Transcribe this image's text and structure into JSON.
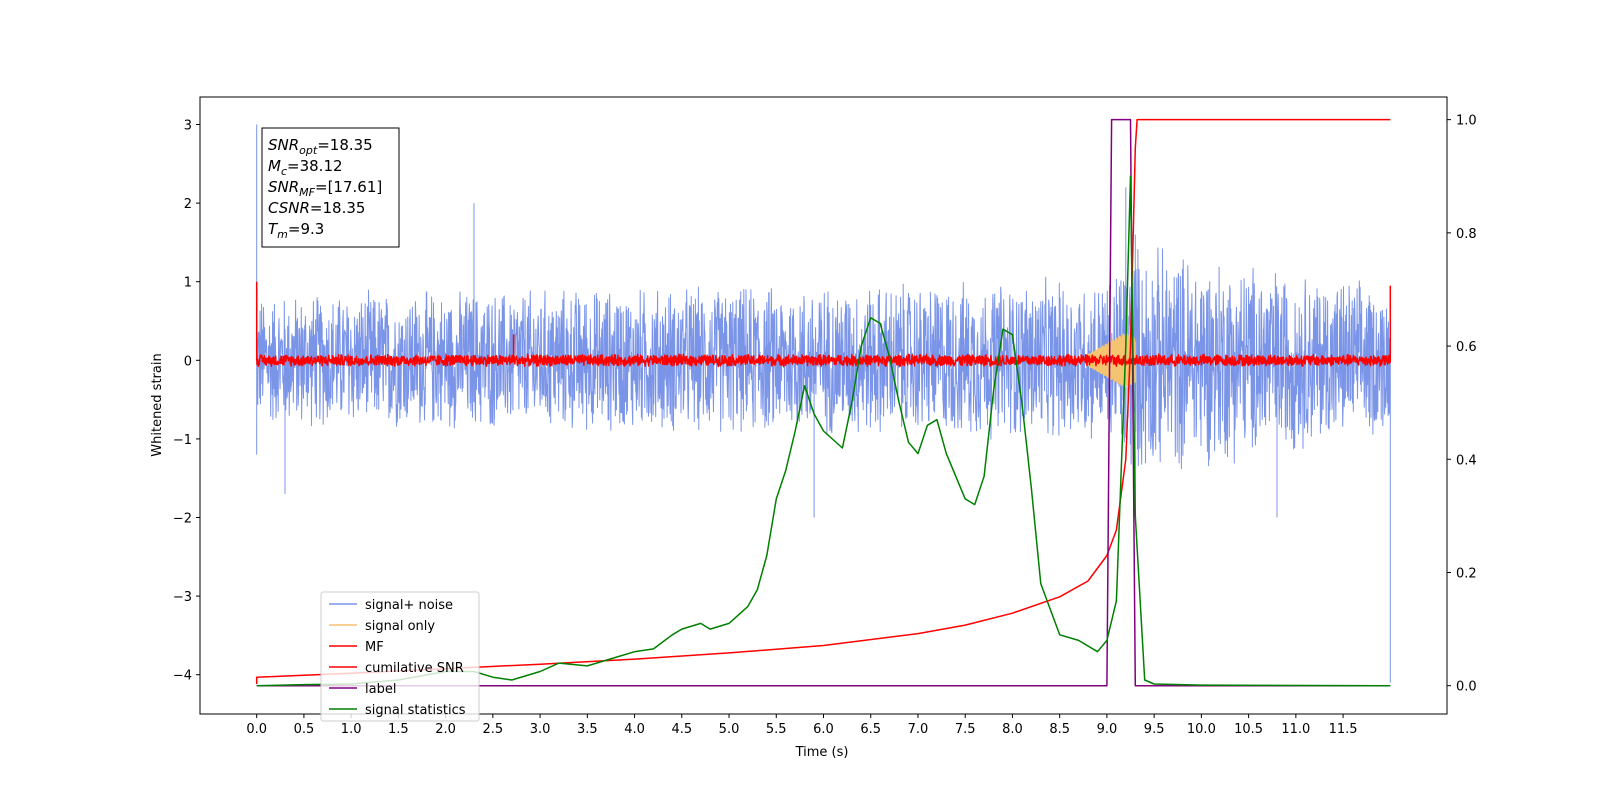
{
  "chart_data": {
    "type": "line",
    "xlabel": "Time (s)",
    "ylabel": "Whitened strain",
    "xlim": [
      -0.6,
      12.6
    ],
    "ylim": [
      -4.5,
      3.35
    ],
    "y2lim": [
      -0.05,
      1.04
    ],
    "xticks": [
      0.0,
      0.5,
      1.0,
      1.5,
      2.0,
      2.5,
      3.0,
      3.5,
      4.0,
      4.5,
      5.0,
      5.5,
      6.0,
      6.5,
      7.0,
      7.5,
      8.0,
      8.5,
      9.0,
      9.5,
      10.0,
      10.5,
      11.0,
      11.5
    ],
    "xtick_labels": [
      "0.0",
      "0.5",
      "1.0",
      "1.5",
      "2.0",
      "2.5",
      "3.0",
      "3.5",
      "4.0",
      "4.5",
      "5.0",
      "5.5",
      "6.0",
      "6.5",
      "7.0",
      "7.5",
      "8.0",
      "8.5",
      "9.0",
      "9.5",
      "10.0",
      "10.5",
      "11.0",
      "11.5"
    ],
    "yticks": [
      -4,
      -3,
      -2,
      -1,
      0,
      1,
      2,
      3
    ],
    "ytick_labels": [
      "−4",
      "−3",
      "−2",
      "−1",
      "0",
      "1",
      "2",
      "3"
    ],
    "y2ticks": [
      0.0,
      0.2,
      0.4,
      0.6,
      0.8,
      1.0
    ],
    "y2tick_labels": [
      "0.0",
      "0.2",
      "0.4",
      "0.6",
      "0.8",
      "1.0"
    ],
    "grid": false,
    "legend_position": "lower-left",
    "annotation": {
      "lines": [
        {
          "base": "SNR",
          "sub": "opt",
          "value": "=18.35"
        },
        {
          "base": "M",
          "sub": "c",
          "value": "=38.12"
        },
        {
          "base": "SNR",
          "sub": "MF",
          "value": "=[17.61]"
        },
        {
          "base": "CSNR",
          "sub": "",
          "value": "=18.35"
        },
        {
          "base": "T",
          "sub": "m",
          "value": "=9.3"
        }
      ]
    },
    "series": [
      {
        "name": "signal+ noise",
        "color": "#7a94e8",
        "axis": "left",
        "style": "noise band",
        "x_range": [
          0.0,
          12.0
        ],
        "envelope": [
          [
            0.0,
            0.9
          ],
          [
            9.0,
            1.1
          ],
          [
            9.25,
            1.6
          ],
          [
            12.0,
            1.0
          ]
        ],
        "spikes": [
          [
            0.0,
            3.0
          ],
          [
            0.0,
            -1.2
          ],
          [
            2.3,
            2.0
          ],
          [
            5.9,
            -2.0
          ],
          [
            9.3,
            -2.0
          ],
          [
            10.8,
            -2.0
          ],
          [
            12.0,
            -4.1
          ],
          [
            0.3,
            -1.7
          ],
          [
            9.2,
            2.2
          ],
          [
            9.3,
            1.6
          ]
        ]
      },
      {
        "name": "signal only",
        "color": "#f5c471",
        "axis": "left",
        "style": "chirp",
        "x_range": [
          8.8,
          9.3
        ],
        "peak_amplitude": 0.35,
        "peak_time": 9.2
      },
      {
        "name": "MF",
        "color": "#ff0000",
        "axis": "left",
        "style": "noise band",
        "x_range": [
          0.0,
          12.0
        ],
        "envelope": [
          [
            0.0,
            0.08
          ],
          [
            12.0,
            0.08
          ]
        ],
        "spikes": [
          [
            0.0,
            1.0
          ],
          [
            2.72,
            0.33
          ],
          [
            12.0,
            0.95
          ]
        ]
      },
      {
        "name": "cumilative SNR",
        "color": "#ff0000",
        "axis": "right",
        "x": [
          0.0,
          0.0,
          1.0,
          2.0,
          3.0,
          4.0,
          5.0,
          6.0,
          7.0,
          7.5,
          8.0,
          8.5,
          8.8,
          9.0,
          9.1,
          9.2,
          9.25,
          9.3,
          9.32,
          12.0
        ],
        "y": [
          0.003,
          0.015,
          0.022,
          0.03,
          0.038,
          0.047,
          0.058,
          0.071,
          0.092,
          0.107,
          0.128,
          0.157,
          0.185,
          0.23,
          0.275,
          0.4,
          0.6,
          0.95,
          1.0,
          1.0
        ]
      },
      {
        "name": "label",
        "color": "#800080",
        "axis": "right",
        "x": [
          0.0,
          9.0,
          9.05,
          9.25,
          9.3,
          12.0
        ],
        "y": [
          0.0,
          0.0,
          1.0,
          1.0,
          0.0,
          0.0
        ]
      },
      {
        "name": "signal statistics",
        "color": "#008000",
        "axis": "right",
        "x": [
          0.0,
          0.5,
          1.0,
          1.5,
          2.0,
          2.3,
          2.5,
          2.7,
          3.0,
          3.2,
          3.5,
          3.8,
          4.0,
          4.2,
          4.4,
          4.5,
          4.7,
          4.8,
          5.0,
          5.2,
          5.3,
          5.4,
          5.5,
          5.6,
          5.7,
          5.8,
          5.9,
          6.0,
          6.2,
          6.3,
          6.4,
          6.5,
          6.6,
          6.7,
          6.8,
          6.9,
          7.0,
          7.1,
          7.2,
          7.3,
          7.5,
          7.6,
          7.7,
          7.8,
          7.9,
          8.0,
          8.1,
          8.2,
          8.3,
          8.5,
          8.7,
          8.9,
          9.0,
          9.1,
          9.2,
          9.25,
          9.3,
          9.4,
          9.5,
          10.0,
          12.0
        ],
        "y": [
          0.0,
          0.002,
          0.003,
          0.01,
          0.025,
          0.025,
          0.015,
          0.01,
          0.025,
          0.04,
          0.035,
          0.05,
          0.06,
          0.065,
          0.09,
          0.1,
          0.11,
          0.1,
          0.11,
          0.14,
          0.17,
          0.23,
          0.33,
          0.38,
          0.45,
          0.53,
          0.48,
          0.45,
          0.42,
          0.5,
          0.6,
          0.65,
          0.64,
          0.58,
          0.5,
          0.43,
          0.41,
          0.46,
          0.47,
          0.41,
          0.33,
          0.32,
          0.37,
          0.52,
          0.63,
          0.62,
          0.5,
          0.35,
          0.18,
          0.09,
          0.08,
          0.06,
          0.08,
          0.15,
          0.6,
          0.9,
          0.3,
          0.01,
          0.003,
          0.001,
          0.0
        ]
      }
    ]
  }
}
